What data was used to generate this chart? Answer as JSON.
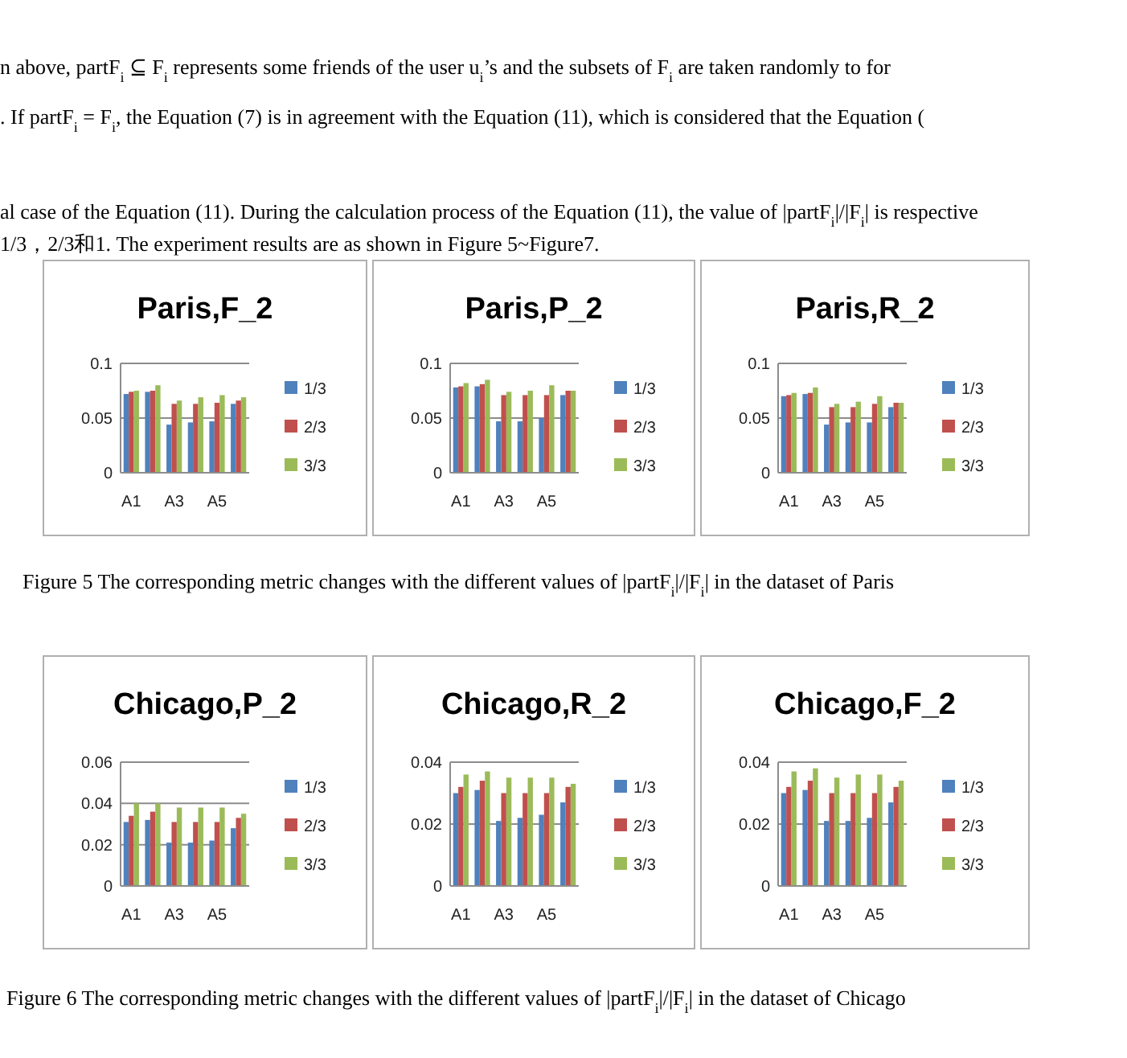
{
  "chart_data": [
    {
      "type": "bar",
      "title": "Paris,F_2",
      "categories": [
        "A1",
        null,
        "A3",
        null,
        "A5",
        null
      ],
      "series": [
        {
          "name": "1/3",
          "color": "#4f81bd",
          "values": [
            0.072,
            0.074,
            0.044,
            0.046,
            0.047,
            0.063
          ]
        },
        {
          "name": "2/3",
          "color": "#c0504d",
          "values": [
            0.074,
            0.075,
            0.063,
            0.063,
            0.064,
            0.066
          ]
        },
        {
          "name": "3/3",
          "color": "#9bbb59",
          "values": [
            0.075,
            0.08,
            0.066,
            0.069,
            0.071,
            0.069
          ]
        }
      ],
      "ylim": [
        0,
        0.1
      ],
      "yticks": [
        0,
        0.05,
        0.1
      ],
      "grid": "y",
      "legend": "right",
      "annotations": [
        "n above, partF$_{i}$ ⊆ F$_{i}$ represents some friends of the user u$_{i}$’s and the subsets of F$_{i}$ are taken randomly to for",
        ". If partF$_{i}$ = F$_{i}$, the Equation (7) is in agreement with the Equation (11), which is considered that the Equation (",
        "al case of the Equation (11). During the calculation process of the Equation (11), the value of |partF$_{i}$|/|F$_{i}$| is respective",
        "1/3，2/3和1. The experiment results are as shown in Figure 5~Figure7.",
        "Figure 5 The corresponding metric changes with the different values of |partF$_{i}$|/|F$_{i}$| in the dataset of Paris"
      ]
    },
    {
      "type": "bar",
      "title": "Paris,P_2",
      "categories": [
        "A1",
        null,
        "A3",
        null,
        "A5",
        null
      ],
      "series": [
        {
          "name": "1/3",
          "color": "#4f81bd",
          "values": [
            0.078,
            0.079,
            0.047,
            0.047,
            0.05,
            0.071
          ]
        },
        {
          "name": "2/3",
          "color": "#c0504d",
          "values": [
            0.079,
            0.081,
            0.071,
            0.071,
            0.071,
            0.075
          ]
        },
        {
          "name": "3/3",
          "color": "#9bbb59",
          "values": [
            0.082,
            0.085,
            0.074,
            0.075,
            0.08,
            0.075
          ]
        }
      ],
      "ylim": [
        0,
        0.1
      ],
      "yticks": [
        0,
        0.05,
        0.1
      ],
      "grid": "y",
      "legend": "right"
    },
    {
      "type": "bar",
      "title": "Paris,R_2",
      "categories": [
        "A1",
        null,
        "A3",
        null,
        "A5",
        null
      ],
      "series": [
        {
          "name": "1/3",
          "color": "#4f81bd",
          "values": [
            0.07,
            0.072,
            0.044,
            0.046,
            0.046,
            0.06
          ]
        },
        {
          "name": "2/3",
          "color": "#c0504d",
          "values": [
            0.071,
            0.073,
            0.06,
            0.06,
            0.063,
            0.064
          ]
        },
        {
          "name": "3/3",
          "color": "#9bbb59",
          "values": [
            0.073,
            0.078,
            0.063,
            0.065,
            0.07,
            0.064
          ]
        }
      ],
      "ylim": [
        0,
        0.1
      ],
      "yticks": [
        0,
        0.05,
        0.1
      ],
      "grid": "y",
      "legend": "right"
    },
    {
      "type": "bar",
      "title": "Chicago,P_2",
      "categories": [
        "A1",
        null,
        "A3",
        null,
        "A5",
        null
      ],
      "series": [
        {
          "name": "1/3",
          "color": "#4f81bd",
          "values": [
            0.031,
            0.032,
            0.021,
            0.021,
            0.022,
            0.028
          ]
        },
        {
          "name": "2/3",
          "color": "#c0504d",
          "values": [
            0.034,
            0.036,
            0.031,
            0.031,
            0.031,
            0.033
          ]
        },
        {
          "name": "3/3",
          "color": "#9bbb59",
          "values": [
            0.04,
            0.04,
            0.038,
            0.038,
            0.038,
            0.035
          ]
        }
      ],
      "ylim": [
        0,
        0.06
      ],
      "yticks": [
        0,
        0.02,
        0.04,
        0.06
      ],
      "grid": "y",
      "legend": "right",
      "annotations": [
        "Figure 6 The corresponding metric changes with the different values of |partF$_{i}$|/|F$_{i}$| in the dataset of Chicago"
      ]
    },
    {
      "type": "bar",
      "title": "Chicago,R_2",
      "categories": [
        "A1",
        null,
        "A3",
        null,
        "A5",
        null
      ],
      "series": [
        {
          "name": "1/3",
          "color": "#4f81bd",
          "values": [
            0.03,
            0.031,
            0.021,
            0.022,
            0.023,
            0.027
          ]
        },
        {
          "name": "2/3",
          "color": "#c0504d",
          "values": [
            0.032,
            0.034,
            0.03,
            0.03,
            0.03,
            0.032
          ]
        },
        {
          "name": "3/3",
          "color": "#9bbb59",
          "values": [
            0.036,
            0.037,
            0.035,
            0.035,
            0.035,
            0.033
          ]
        }
      ],
      "ylim": [
        0,
        0.04
      ],
      "yticks": [
        0,
        0.02,
        0.04
      ],
      "grid": "y",
      "legend": "right"
    },
    {
      "type": "bar",
      "title": "Chicago,F_2",
      "categories": [
        "A1",
        null,
        "A3",
        null,
        "A5",
        null
      ],
      "series": [
        {
          "name": "1/3",
          "color": "#4f81bd",
          "values": [
            0.03,
            0.031,
            0.021,
            0.021,
            0.022,
            0.027
          ]
        },
        {
          "name": "2/3",
          "color": "#c0504d",
          "values": [
            0.032,
            0.034,
            0.03,
            0.03,
            0.03,
            0.032
          ]
        },
        {
          "name": "3/3",
          "color": "#9bbb59",
          "values": [
            0.037,
            0.038,
            0.035,
            0.036,
            0.036,
            0.034
          ]
        }
      ],
      "ylim": [
        0,
        0.04
      ],
      "yticks": [
        0,
        0.02,
        0.04
      ],
      "grid": "y",
      "legend": "right"
    }
  ]
}
